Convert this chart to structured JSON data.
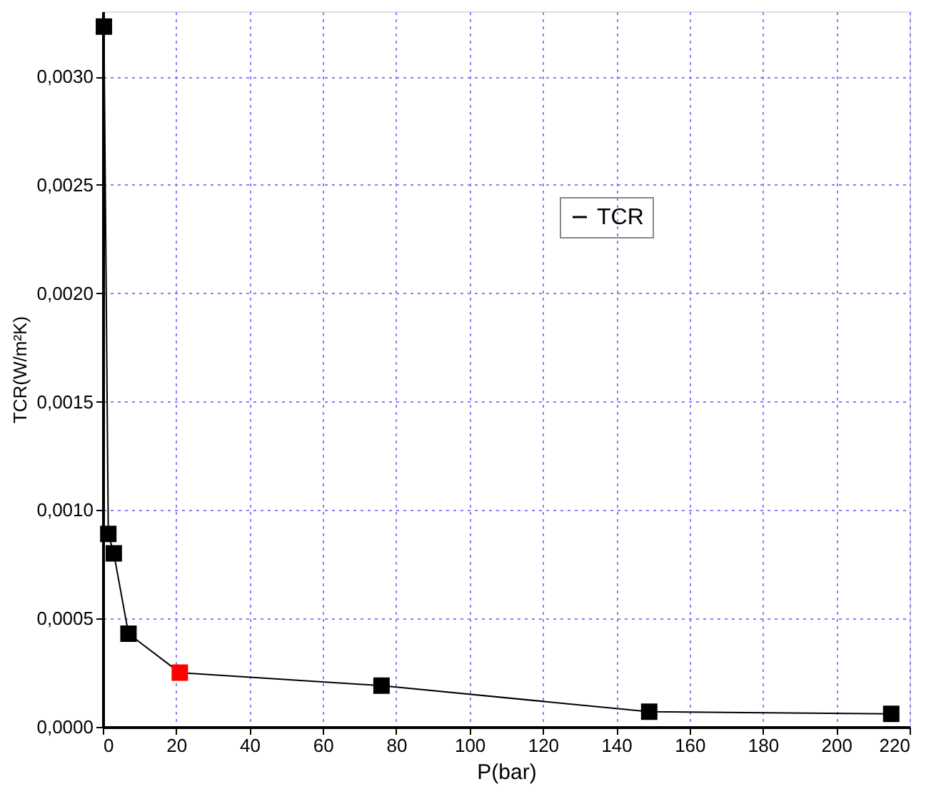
{
  "chart_data": {
    "type": "line",
    "xlabel": "P(bar)",
    "ylabel": "TCR(W/m²K)",
    "x": [
      0.3,
      1.5,
      3,
      7,
      21,
      76,
      149,
      215
    ],
    "series": [
      {
        "name": "TCR",
        "color": "#000000",
        "colors": [
          "#000000",
          "#000000",
          "#000000",
          "#000000",
          "#ff0000",
          "#000000",
          "#000000",
          "#000000"
        ],
        "values": [
          0.00323,
          0.00089,
          0.0008,
          0.00043,
          0.00025,
          0.00019,
          7e-05,
          6e-05
        ]
      }
    ],
    "xlim": [
      0,
      220
    ],
    "xticks": [
      0,
      20,
      40,
      60,
      80,
      100,
      120,
      140,
      160,
      180,
      200,
      220
    ],
    "ylim": [
      0,
      0.0033
    ],
    "yticks": [
      {
        "value": 0,
        "label": "0,0000"
      },
      {
        "value": 0.0005,
        "label": "0,0005"
      },
      {
        "value": 0.001,
        "label": "0,0010"
      },
      {
        "value": 0.0015,
        "label": "0,0015"
      },
      {
        "value": 0.002,
        "label": "0,0020"
      },
      {
        "value": 0.0025,
        "label": "0,0025"
      },
      {
        "value": 0.003,
        "label": "0,0030"
      }
    ],
    "grid": true,
    "legend": "top right",
    "marker": "square",
    "line_style": "solid"
  }
}
